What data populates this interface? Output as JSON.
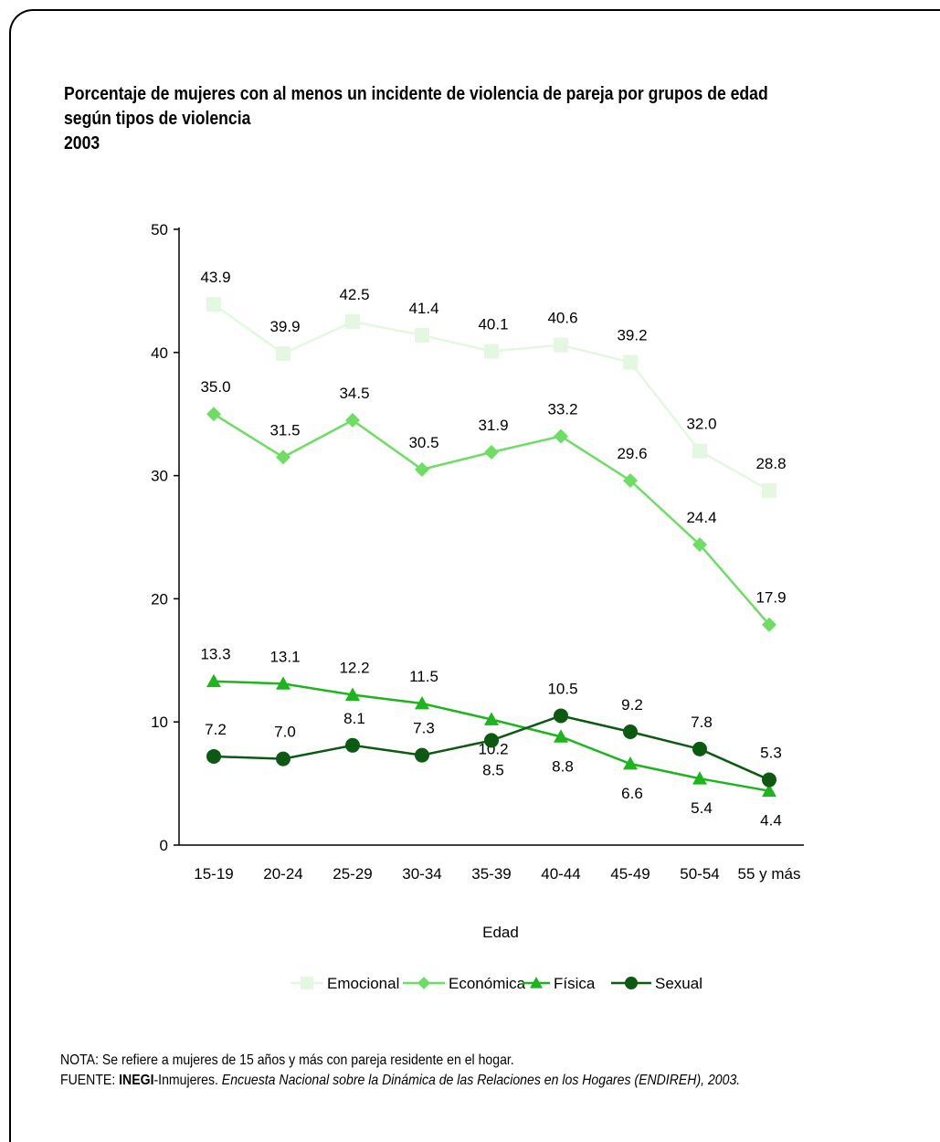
{
  "header": {
    "title_line1": "Porcentaje de mujeres con al menos un incidente de violencia de pareja por grupos de edad",
    "title_line2": "según tipos de violencia",
    "title_year": "2003"
  },
  "chart_data": {
    "type": "line",
    "categories": [
      "15-19",
      "20-24",
      "25-29",
      "30-34",
      "35-39",
      "40-44",
      "45-49",
      "50-54",
      "55 y más"
    ],
    "xlabel": "Edad",
    "ylabel": "",
    "ylim": [
      0,
      50
    ],
    "yticks": [
      0,
      10,
      20,
      30,
      40,
      50
    ],
    "legend_position": "bottom",
    "series": [
      {
        "name": "Emocional",
        "marker": "square",
        "color": "#e4f7e0",
        "values": [
          43.9,
          39.9,
          42.5,
          41.4,
          40.1,
          40.6,
          39.2,
          32.0,
          28.8
        ],
        "labels": [
          "43.9",
          "39.9",
          "42.5",
          "41.4",
          "40.1",
          "40.6",
          "39.2",
          "32.0",
          "28.8"
        ]
      },
      {
        "name": "Económica",
        "marker": "diamond",
        "color": "#6edd63",
        "values": [
          35.0,
          31.5,
          34.5,
          30.5,
          31.9,
          33.2,
          29.6,
          24.4,
          17.9
        ],
        "labels": [
          "35.0",
          "31.5",
          "34.5",
          "30.5",
          "31.9",
          "33.2",
          "29.6",
          "24.4",
          "17.9"
        ]
      },
      {
        "name": "Física",
        "marker": "triangle",
        "color": "#1db51d",
        "values": [
          13.3,
          13.1,
          12.2,
          11.5,
          10.2,
          8.8,
          6.6,
          5.4,
          4.4
        ],
        "labels": [
          "13.3",
          "13.1",
          "12.2",
          "11.5",
          "10.2",
          "8.8",
          "6.6",
          "5.4",
          "4.4"
        ]
      },
      {
        "name": "Sexual",
        "marker": "circle",
        "color": "#0c5a12",
        "values": [
          7.2,
          7.0,
          8.1,
          7.3,
          8.5,
          10.5,
          9.2,
          7.8,
          5.3
        ],
        "labels": [
          "7.2",
          "7.0",
          "8.1",
          "7.3",
          "8.5",
          "10.5",
          "9.2",
          "7.8",
          "5.3"
        ]
      }
    ]
  },
  "footer": {
    "note": "NOTA: Se refiere a mujeres de 15 años y más con pareja residente en el hogar.",
    "source_label": "FUENTE: ",
    "source_org": "INEGI",
    "source_org2": "-Inmujeres. ",
    "source_title": "Encuesta Nacional sobre la Dinámica de las Relaciones en los Hogares (ENDIREH), 2003."
  }
}
